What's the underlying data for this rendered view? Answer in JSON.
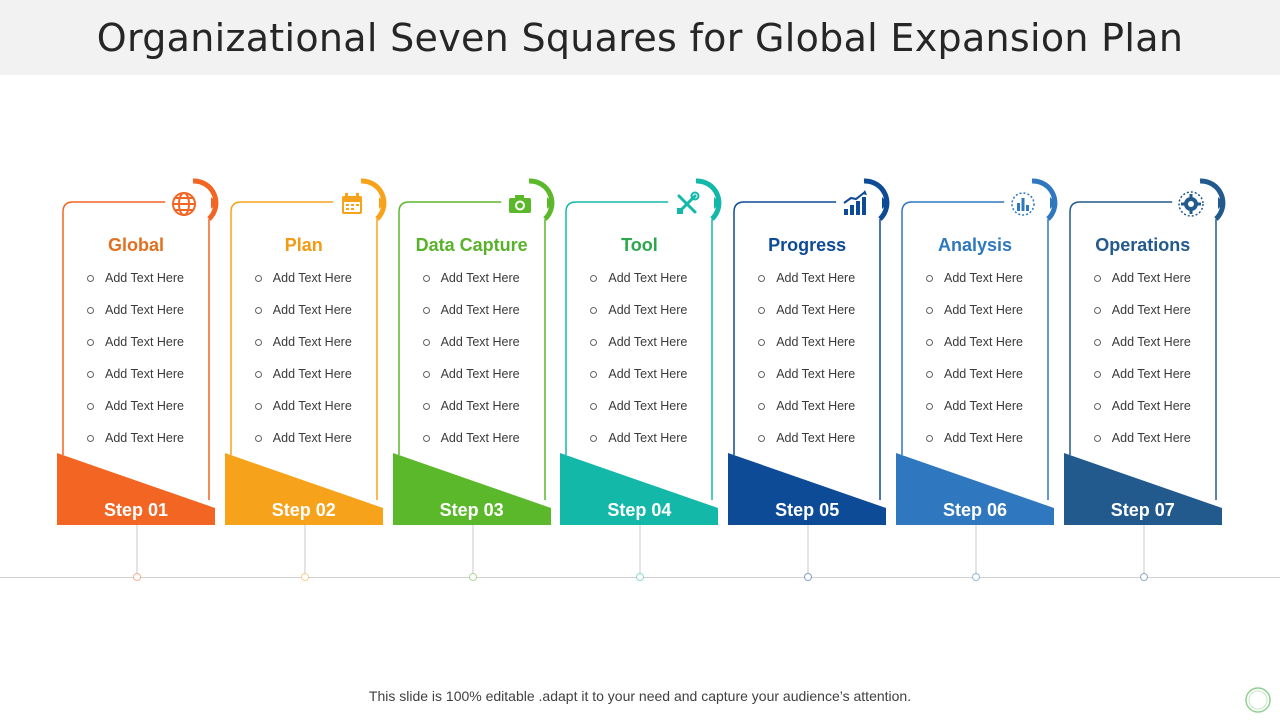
{
  "title": "Organizational Seven Squares for Global Expansion Plan",
  "footer": "This slide is 100% editable .adapt it to your need and capture your audience’s attention.",
  "steps": [
    {
      "title": "Global",
      "step": "Step 01",
      "color": "#f26522",
      "title_color": "#e07020",
      "icon": "globe-icon",
      "items": [
        "Add Text Here",
        "Add Text Here",
        "Add Text Here",
        "Add Text Here",
        "Add Text Here",
        "Add Text Here"
      ]
    },
    {
      "title": "Plan",
      "step": "Step 02",
      "color": "#f7a21b",
      "title_color": "#f39a12",
      "icon": "calendar-icon",
      "items": [
        "Add Text Here",
        "Add Text Here",
        "Add Text Here",
        "Add Text Here",
        "Add Text Here",
        "Add Text Here"
      ]
    },
    {
      "title": "Data Capture",
      "step": "Step 03",
      "color": "#5cb82b",
      "title_color": "#58b22a",
      "icon": "camera-icon",
      "items": [
        "Add Text Here",
        "Add Text Here",
        "Add Text Here",
        "Add Text Here",
        "Add Text Here",
        "Add Text Here"
      ]
    },
    {
      "title": "Tool",
      "step": "Step 04",
      "color": "#13b8a9",
      "title_color": "#2aa84a",
      "icon": "tools-icon",
      "items": [
        "Add Text Here",
        "Add Text Here",
        "Add Text Here",
        "Add Text Here",
        "Add Text Here",
        "Add Text Here"
      ]
    },
    {
      "title": "Progress",
      "step": "Step 05",
      "color": "#0d4b97",
      "title_color": "#0d4b97",
      "icon": "bar-chart-icon",
      "items": [
        "Add Text Here",
        "Add Text Here",
        "Add Text Here",
        "Add Text Here",
        "Add Text Here",
        "Add Text Here"
      ]
    },
    {
      "title": "Analysis",
      "step": "Step 06",
      "color": "#2f78bf",
      "title_color": "#2f78bf",
      "icon": "analysis-icon",
      "items": [
        "Add Text Here",
        "Add Text Here",
        "Add Text Here",
        "Add Text Here",
        "Add Text Here",
        "Add Text Here"
      ]
    },
    {
      "title": "Operations",
      "step": "Step 07",
      "color": "#235a8e",
      "title_color": "#235a8e",
      "icon": "gear-icon",
      "items": [
        "Add Text Here",
        "Add Text Here",
        "Add Text Here",
        "Add Text Here",
        "Add Text Here",
        "Add Text Here"
      ]
    }
  ]
}
